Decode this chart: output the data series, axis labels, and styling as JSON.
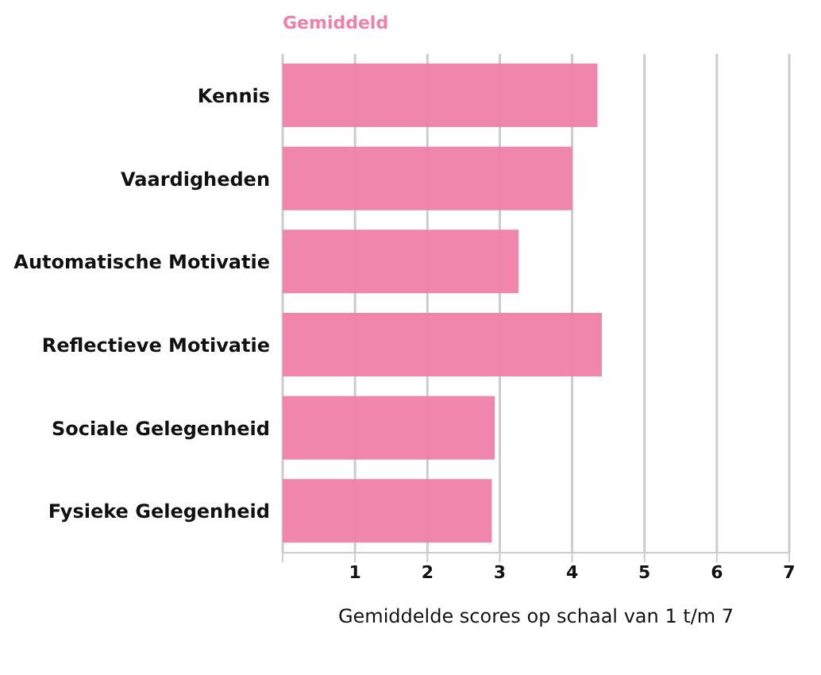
{
  "chart_data": {
    "type": "bar",
    "orientation": "horizontal",
    "xlabel": "Gemiddelde scores op schaal van 1 t/m 7",
    "categories": [
      "Kennis",
      "Vaardigheden",
      "Automatische Motivatie",
      "Reflectieve Motivatie",
      "Sociale Gelegenheid",
      "Fysieke Gelegenheid"
    ],
    "series": [
      {
        "name": "Gemiddeld",
        "color": "#f080a8",
        "values": [
          4.35,
          4.0,
          3.26,
          4.41,
          2.93,
          2.89
        ]
      }
    ],
    "xlim": [
      0,
      7
    ],
    "xticks": [
      {
        "value": 0,
        "label": null
      },
      1,
      2,
      3,
      4,
      5,
      6,
      7
    ],
    "grid": "x",
    "legend": "top left"
  }
}
